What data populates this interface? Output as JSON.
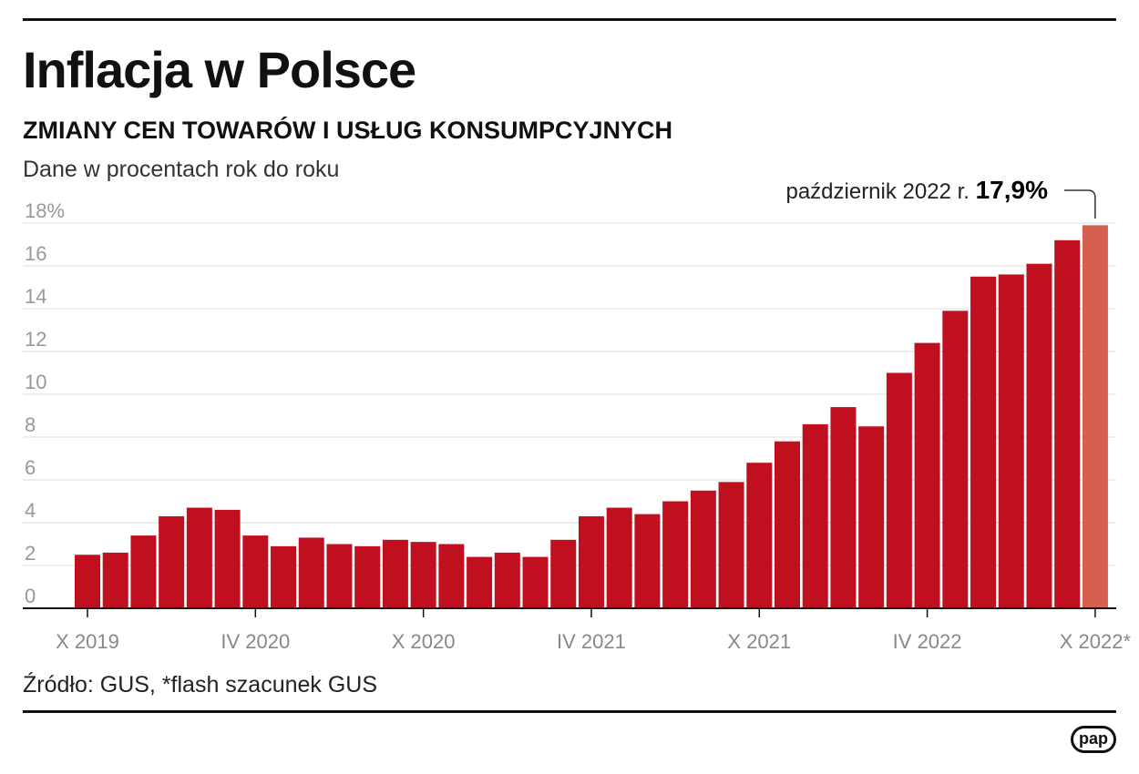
{
  "title": "Inflacja w Polsce",
  "subtitle": "ZMIANY CEN TOWARÓW I USŁUG KONSUMPCYJNYCH",
  "note": "Dane w procentach rok do roku",
  "source": "Źródło: GUS, *flash szacunek GUS",
  "logo": "pap",
  "annotation": {
    "label": "październik 2022 r.",
    "value": "17,9%"
  },
  "colors": {
    "bar": "#c01020",
    "highlight": "#d66050",
    "grid": "#dddddd"
  },
  "chart_data": {
    "type": "bar",
    "ylim": [
      0,
      18
    ],
    "yticks": [
      {
        "value": 0,
        "label": "0"
      },
      {
        "value": 2,
        "label": "2"
      },
      {
        "value": 4,
        "label": "4"
      },
      {
        "value": 6,
        "label": "6"
      },
      {
        "value": 8,
        "label": "8"
      },
      {
        "value": 10,
        "label": "10"
      },
      {
        "value": 12,
        "label": "12"
      },
      {
        "value": 14,
        "label": "14"
      },
      {
        "value": 16,
        "label": "16"
      },
      {
        "value": 18,
        "label": "18%"
      }
    ],
    "grid": true,
    "xticks": [
      {
        "index": 0,
        "label": "X 2019"
      },
      {
        "index": 6,
        "label": "IV 2020"
      },
      {
        "index": 12,
        "label": "X 2020"
      },
      {
        "index": 18,
        "label": "IV 2021"
      },
      {
        "index": 24,
        "label": "X 2021"
      },
      {
        "index": 30,
        "label": "IV 2022"
      },
      {
        "index": 36,
        "label": "X 2022*"
      }
    ],
    "values": [
      2.5,
      2.6,
      3.4,
      4.3,
      4.7,
      4.6,
      3.4,
      2.9,
      3.3,
      3.0,
      2.9,
      3.2,
      3.1,
      3.0,
      2.4,
      2.6,
      2.4,
      3.2,
      4.3,
      4.7,
      4.4,
      5.0,
      5.5,
      5.9,
      6.8,
      7.8,
      8.6,
      9.4,
      8.5,
      11.0,
      12.4,
      13.9,
      15.5,
      15.6,
      16.1,
      17.2,
      17.9
    ],
    "highlight_index": 36
  }
}
